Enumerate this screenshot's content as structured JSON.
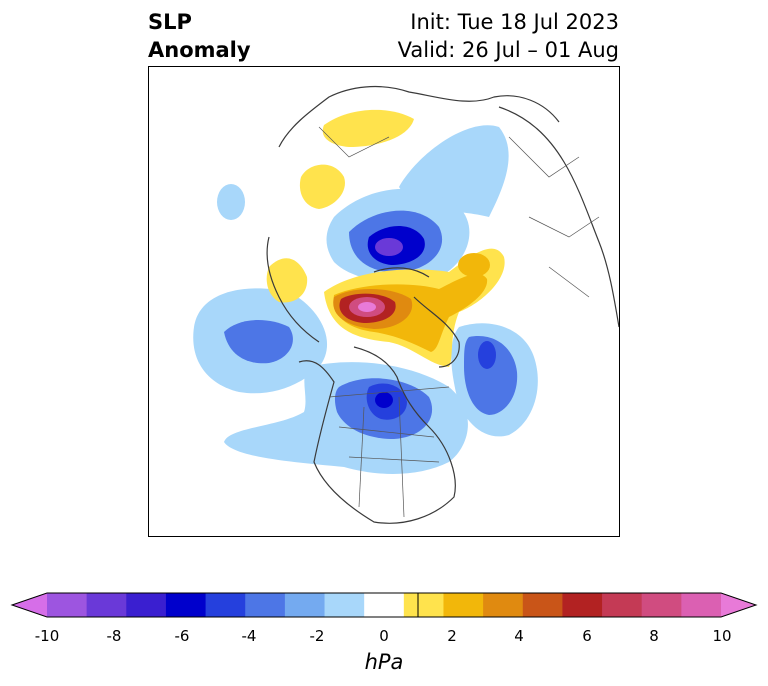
{
  "title": {
    "left_line1": "SLP",
    "left_line2": "Anomaly",
    "right_line1": "Init: Tue 18 Jul 2023",
    "right_line2": "Valid: 26 Jul – 01 Aug"
  },
  "colorbar": {
    "unit": "hPa",
    "ticks": [
      "-10",
      "-8",
      "-6",
      "-4",
      "-2",
      "0",
      "2",
      "4",
      "6",
      "8",
      "10"
    ],
    "colors": [
      "#d66ee8",
      "#9d55e0",
      "#6a39d8",
      "#3a1fd0",
      "#0000cc",
      "#2540dd",
      "#4d76e6",
      "#74aaf0",
      "#a8d7fa",
      "#ffffff",
      "#ffe34d",
      "#f2b70a",
      "#e08a10",
      "#c95518",
      "#b22222",
      "#c43a55",
      "#d04c80",
      "#db60b2",
      "#e87ad8"
    ]
  },
  "map": {
    "projection": "polar-stereographic",
    "features": [
      "coastlines",
      "country-borders",
      "us-state-borders"
    ]
  }
}
